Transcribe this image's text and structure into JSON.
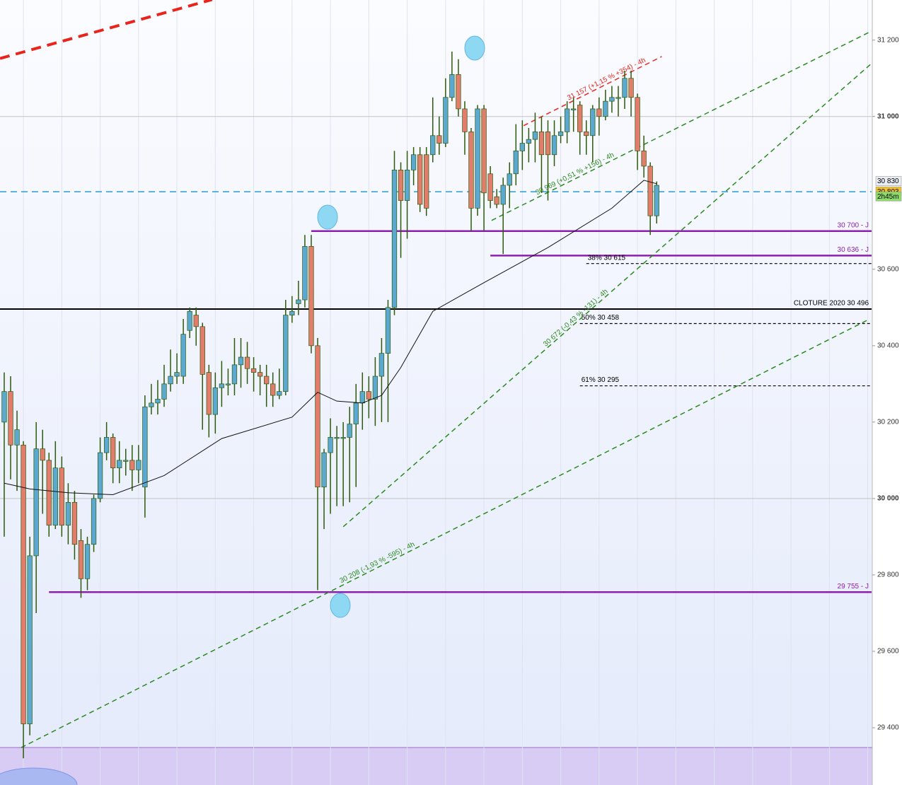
{
  "chart_data": {
    "type": "candlestick",
    "xlim": [
      -0.66,
      135.6
    ],
    "ylim": [
      29250,
      31305
    ],
    "yticks": [
      {
        "value": 29400,
        "label": "29 400"
      },
      {
        "value": 29600,
        "label": "29 600"
      },
      {
        "value": 29800,
        "label": "29 800"
      },
      {
        "value": 30000,
        "label": "30 000"
      },
      {
        "value": 30200,
        "label": "30 200"
      },
      {
        "value": 30400,
        "label": "30 400"
      },
      {
        "value": 30600,
        "label": "30 600"
      },
      {
        "value": 31000,
        "label": "31 000"
      },
      {
        "value": 31200,
        "label": "31 200"
      }
    ],
    "up_color": "#5ba9d0",
    "down_color": "#e27d6c",
    "wick_color": "#2d5a0a",
    "open": [
      30200,
      30280,
      30140,
      30140,
      29410,
      29850,
      30130,
      30100,
      29930,
      30080,
      29930,
      29990,
      29890,
      29790,
      29880,
      30000,
      30120,
      30160,
      30080,
      30100,
      30100,
      30075,
      30030,
      30240,
      30250,
      30260,
      30300,
      30320,
      30320,
      30440,
      30480,
      30450,
      30330,
      30220,
      30290,
      30300,
      30300,
      30350,
      30370,
      30340,
      30330,
      30320,
      30300,
      30270,
      30280,
      30480,
      30510,
      30520,
      30660,
      30400,
      30030,
      30120,
      30160,
      30160,
      30160,
      30195,
      30250,
      30280,
      30260,
      30320,
      30380,
      30500,
      30860,
      30780,
      30860,
      30900,
      30900,
      30900,
      30950,
      30930,
      31050,
      31110,
      31020,
      30960,
      30760,
      31020,
      30850,
      30790,
      30770,
      30820,
      30850,
      30910,
      30930,
      30940,
      30960,
      30960,
      30900,
      30950,
      30960,
      31020,
      31030,
      30960,
      30950,
      31020,
      31000,
      31040,
      31050,
      31050,
      31100,
      31050,
      30910,
      30870,
      30740
    ],
    "high": [
      30330,
      30320,
      30230,
      30150,
      29900,
      30200,
      30180,
      30120,
      30150,
      30110,
      30040,
      30020,
      29920,
      29900,
      30010,
      30160,
      30200,
      30170,
      30150,
      30130,
      30140,
      30140,
      30270,
      30300,
      30310,
      30350,
      30390,
      30380,
      30470,
      30500,
      30500,
      30460,
      30350,
      30330,
      30360,
      30340,
      30420,
      30420,
      30410,
      30370,
      30350,
      30350,
      30330,
      30340,
      30520,
      30530,
      30570,
      30690,
      30690,
      30420,
      30130,
      30210,
      30190,
      30200,
      30240,
      30300,
      30330,
      30320,
      30370,
      30420,
      30520,
      30910,
      30880,
      30910,
      30920,
      30920,
      30920,
      31050,
      31000,
      31100,
      31170,
      31150,
      31040,
      30970,
      31030,
      31030,
      30870,
      30810,
      30840,
      30880,
      30980,
      30990,
      30970,
      31010,
      31000,
      30990,
      30990,
      31000,
      31040,
      31050,
      31040,
      30990,
      31030,
      31050,
      31070,
      31080,
      31080,
      31120,
      31120,
      31060,
      30950,
      30880,
      30830
    ],
    "low": [
      29900,
      30050,
      30020,
      29320,
      29380,
      29700,
      29960,
      29900,
      29920,
      29900,
      29880,
      29840,
      29740,
      29760,
      29860,
      29990,
      30100,
      30040,
      30040,
      30060,
      30020,
      30040,
      29950,
      30220,
      30220,
      30240,
      30280,
      30300,
      30300,
      30420,
      30400,
      30180,
      30160,
      30170,
      30240,
      30270,
      30270,
      30290,
      30300,
      30280,
      30270,
      30240,
      30240,
      30260,
      30270,
      30460,
      30480,
      30500,
      30380,
      29760,
      29920,
      29960,
      29980,
      29980,
      29990,
      30030,
      30180,
      30210,
      30190,
      30200,
      30200,
      30480,
      30630,
      30680,
      30820,
      30750,
      30740,
      30880,
      30900,
      30920,
      31040,
      31000,
      30900,
      30700,
      30740,
      30700,
      30760,
      30760,
      30640,
      30760,
      30820,
      30860,
      30880,
      30880,
      30800,
      30780,
      30870,
      30930,
      30930,
      30960,
      30900,
      30900,
      30880,
      30950,
      30990,
      31010,
      31000,
      31020,
      31000,
      30860,
      30840,
      30690,
      30720
    ],
    "close": [
      30280,
      30140,
      30180,
      29410,
      29850,
      30130,
      30100,
      29930,
      30080,
      29930,
      29990,
      29880,
      29790,
      29880,
      30000,
      30120,
      30160,
      30080,
      30100,
      30100,
      30075,
      30100,
      30240,
      30250,
      30260,
      30300,
      30320,
      30330,
      30430,
      30490,
      30450,
      30325,
      30220,
      30290,
      30300,
      30300,
      30350,
      30370,
      30340,
      30330,
      30320,
      30300,
      30270,
      30280,
      30480,
      30490,
      30520,
      30660,
      30400,
      30030,
      30120,
      30160,
      30160,
      30160,
      30195,
      30250,
      30280,
      30260,
      30320,
      30380,
      30500,
      30860,
      30780,
      30860,
      30900,
      30770,
      30760,
      30950,
      30930,
      31050,
      31110,
      31020,
      30960,
      30760,
      31020,
      30800,
      30780,
      30770,
      30820,
      30850,
      30910,
      30930,
      30940,
      30960,
      30900,
      30900,
      30950,
      30960,
      31020,
      31020,
      30960,
      30950,
      31020,
      31000,
      31040,
      31050,
      31050,
      31100,
      31050,
      30910,
      30870,
      30740,
      30820
    ],
    "ma": {
      "color": "#111111",
      "x": [
        0,
        4,
        10,
        17,
        25,
        34,
        45,
        49,
        52,
        56,
        59,
        62,
        67,
        75,
        85,
        95,
        100,
        102
      ],
      "values": [
        30040,
        30025,
        30015,
        30010,
        30060,
        30157,
        30213,
        30278,
        30255,
        30250,
        30270,
        30343,
        30490,
        30565,
        30657,
        30760,
        30833,
        30824
      ]
    },
    "levels": [
      {
        "label": "30 700 - J",
        "value": 30700,
        "color": "#8b1fae",
        "style": "solid",
        "start": 48
      },
      {
        "label": "30 636 - J",
        "value": 30636,
        "color": "#8b1fae",
        "style": "solid",
        "start": 76
      },
      {
        "label": "29 755 - J",
        "value": 29755,
        "color": "#8b1fae",
        "style": "solid",
        "start": 7
      },
      {
        "label": "CLOTURE 2020 30 496",
        "value": 30496,
        "color": "#000000",
        "style": "solid",
        "start": -0.66
      },
      {
        "label": "38% 30 615",
        "value": 30615,
        "color": "#000000",
        "style": "dashed",
        "start": 91
      },
      {
        "label": "50% 30 458",
        "value": 30458,
        "color": "#000000",
        "style": "dashed",
        "start": 90
      },
      {
        "label": "61% 30 295",
        "value": 30295,
        "color": "#000000",
        "style": "dashed",
        "start": 90
      }
    ],
    "trendlines": [
      {
        "label": null,
        "color": "#e8241c",
        "x": [
          -0.66,
          32.5
        ],
        "values": [
          31152,
          31306
        ]
      },
      {
        "label": "31 157 (+1,15 % +354) - 4h",
        "color": "#e8241c",
        "x": [
          81.2,
          102.8
        ],
        "values": [
          30976,
          31157
        ]
      },
      {
        "label": "30 969 (+0,51 % +156) - 4h",
        "color": "#2a8a1e",
        "x": [
          76.2,
          135.4
        ],
        "values": [
          30728,
          31222
        ]
      },
      {
        "label": "30 672 (-0,43 % -131) - 4h",
        "color": "#2a8a1e",
        "x": [
          53,
          135.6
        ],
        "values": [
          29926,
          31139
        ]
      },
      {
        "label": "30 208 (-1,93 % -595) - 4h",
        "color": "#2a8a1e",
        "x": [
          2.65,
          135.2
        ],
        "values": [
          29348,
          30469
        ]
      }
    ],
    "current_line": {
      "value": 30803,
      "color": "#2a9ad6"
    },
    "price_tags": [
      {
        "label": "30 830",
        "value": 30830,
        "color": "#e9eef5"
      },
      {
        "label": "30 803",
        "value": 30803,
        "color": "#f2c12e"
      },
      {
        "label": "2h45m",
        "color": "#8fdc6a"
      }
    ]
  }
}
